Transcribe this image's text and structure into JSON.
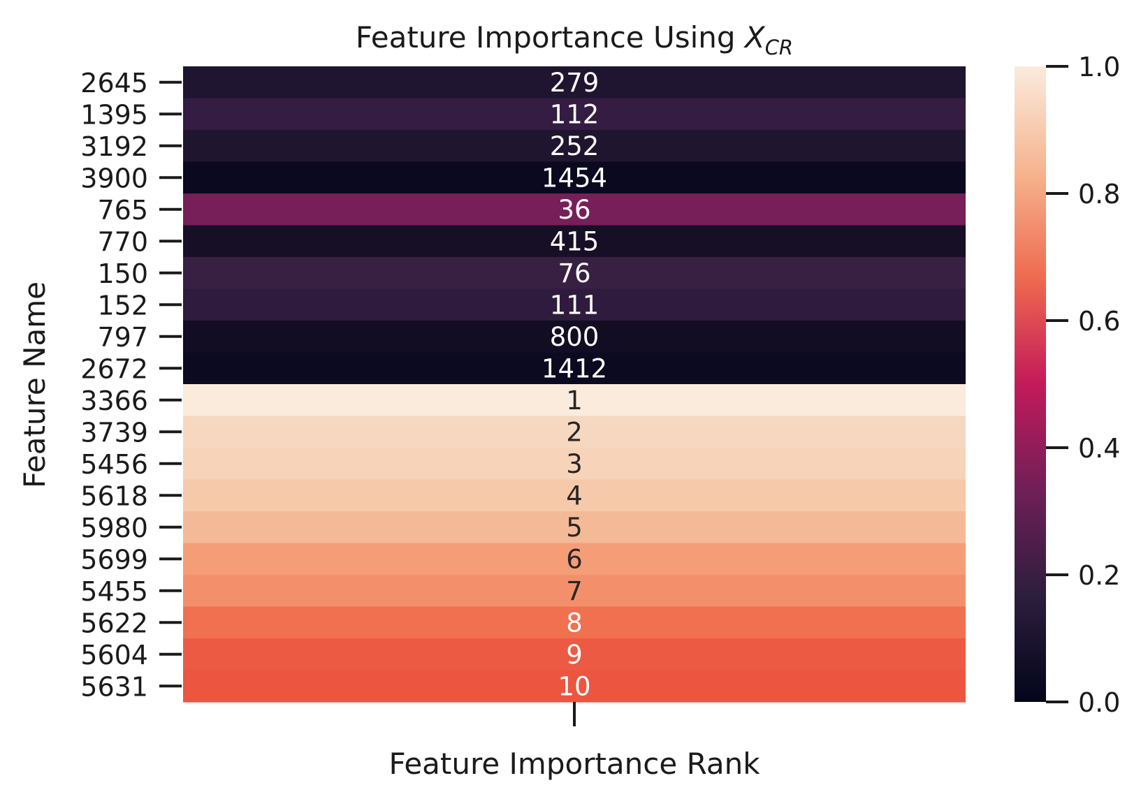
{
  "chart_data": {
    "type": "heatmap",
    "title": "Feature Importance Using ",
    "title_math": {
      "base": "X",
      "subscript": "CR"
    },
    "xlabel": "Feature Importance Rank",
    "ylabel": "Feature Name",
    "x_tick_labels": [
      ""
    ],
    "rows": [
      {
        "feature": "2645",
        "rank": "279",
        "value": 0.06,
        "color": "#1f1530",
        "text_color": "#ffffff"
      },
      {
        "feature": "1395",
        "rank": "112",
        "value": 0.15,
        "color": "#341c42",
        "text_color": "#ffffff"
      },
      {
        "feature": "3192",
        "rank": "252",
        "value": 0.07,
        "color": "#20152f",
        "text_color": "#ffffff"
      },
      {
        "feature": "3900",
        "rank": "1454",
        "value": 0.0,
        "color": "#0b0920",
        "text_color": "#ffffff"
      },
      {
        "feature": "765",
        "rank": "36",
        "value": 0.33,
        "color": "#771f59",
        "text_color": "#ffffff"
      },
      {
        "feature": "770",
        "rank": "415",
        "value": 0.04,
        "color": "#160f26",
        "text_color": "#ffffff"
      },
      {
        "feature": "150",
        "rank": "76",
        "value": 0.17,
        "color": "#382043",
        "text_color": "#ffffff"
      },
      {
        "feature": "152",
        "rank": "111",
        "value": 0.15,
        "color": "#2e1b3d",
        "text_color": "#ffffff"
      },
      {
        "feature": "797",
        "rank": "800",
        "value": 0.02,
        "color": "#120d23",
        "text_color": "#ffffff"
      },
      {
        "feature": "2672",
        "rank": "1412",
        "value": 0.0,
        "color": "#0c0a21",
        "text_color": "#ffffff"
      },
      {
        "feature": "3366",
        "rank": "1",
        "value": 1.0,
        "color": "#faebdd",
        "text_color": "#262626"
      },
      {
        "feature": "3739",
        "rank": "2",
        "value": 0.95,
        "color": "#f6d7c0",
        "text_color": "#262626"
      },
      {
        "feature": "5456",
        "rank": "3",
        "value": 0.93,
        "color": "#f6d3b9",
        "text_color": "#262626"
      },
      {
        "feature": "5618",
        "rank": "4",
        "value": 0.91,
        "color": "#f6c9aa",
        "text_color": "#262626"
      },
      {
        "feature": "5980",
        "rank": "5",
        "value": 0.88,
        "color": "#f4ba98",
        "text_color": "#262626"
      },
      {
        "feature": "5699",
        "rank": "6",
        "value": 0.82,
        "color": "#f59d77",
        "text_color": "#262626"
      },
      {
        "feature": "5455",
        "rank": "7",
        "value": 0.8,
        "color": "#f48f6b",
        "text_color": "#262626"
      },
      {
        "feature": "5622",
        "rank": "8",
        "value": 0.74,
        "color": "#f0704f",
        "text_color": "#ffffff"
      },
      {
        "feature": "5604",
        "rank": "9",
        "value": 0.7,
        "color": "#ed5a43",
        "text_color": "#ffffff"
      },
      {
        "feature": "5631",
        "rank": "10",
        "value": 0.68,
        "color": "#ec5540",
        "text_color": "#ffffff"
      }
    ],
    "colorbar": {
      "min": 0.0,
      "max": 1.0,
      "ticks": [
        "0.0",
        "0.2",
        "0.4",
        "0.6",
        "0.8",
        "1.0"
      ],
      "colormap": "rocket",
      "stops": [
        "#03051a",
        "#2c1e3d",
        "#701f57",
        "#c31a5a",
        "#ef6a4f",
        "#f6b48f",
        "#faebdd"
      ]
    }
  }
}
